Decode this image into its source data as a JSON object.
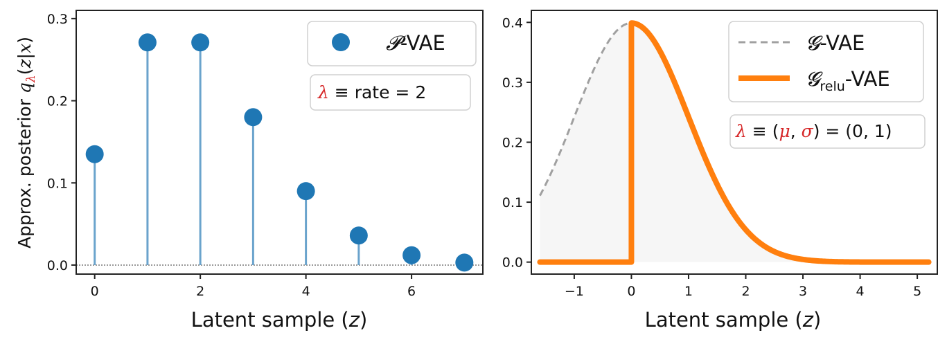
{
  "chart_data": [
    {
      "type": "stem",
      "xlabel": "Latent sample (z)",
      "ylabel": "Approx. posterior  qλ(z|x)",
      "xlim": [
        -0.35,
        7.35
      ],
      "ylim": [
        -0.011,
        0.31
      ],
      "xticks": [
        0,
        2,
        4,
        6
      ],
      "xtick_labels": [
        "0",
        "2",
        "4",
        "6"
      ],
      "yticks": [
        0.0,
        0.1,
        0.2,
        0.3
      ],
      "ytick_labels": [
        "0.0",
        "0.1",
        "0.2",
        "0.3"
      ],
      "x": [
        0,
        1,
        2,
        3,
        4,
        5,
        6,
        7
      ],
      "y": [
        0.135,
        0.271,
        0.271,
        0.18,
        0.09,
        0.036,
        0.012,
        0.003
      ],
      "baseline": 0.0,
      "legend": {
        "label": "P-VAE",
        "script_symbol": "𝓟",
        "suffix": "-VAE",
        "placement": "top-right"
      },
      "param_box": {
        "symbol": "λ",
        "text": " ≡ rate = 2"
      },
      "colors": {
        "marker": "#1f77b4",
        "stem": "#6aa3cc",
        "baseline": "#777777"
      }
    },
    {
      "type": "line",
      "xlabel": "Latent sample (z)",
      "xlim": [
        -1.75,
        5.35
      ],
      "ylim": [
        -0.02,
        0.42
      ],
      "xticks": [
        -1,
        0,
        1,
        2,
        3,
        4,
        5
      ],
      "xtick_labels": [
        "−1",
        "0",
        "1",
        "2",
        "3",
        "4",
        "5"
      ],
      "yticks": [
        0.0,
        0.1,
        0.2,
        0.3,
        0.4
      ],
      "ytick_labels": [
        "0.0",
        "0.1",
        "0.2",
        "0.3",
        "0.4"
      ],
      "x_range": [
        -1.6,
        5.2
      ],
      "series": [
        {
          "name": "G-VAE",
          "script_symbol": "𝓖",
          "suffix": "-VAE",
          "function": "normal_pdf",
          "mu": 0,
          "sigma": 1,
          "x_max": 0,
          "style": "dashed",
          "color": "#a0a0a0"
        },
        {
          "name": "Grelu-VAE",
          "script_symbol": "𝓖",
          "subscript": "relu",
          "suffix": "-VAE",
          "function": "relu_normal_pdf",
          "mu": 0,
          "sigma": 1,
          "style": "solid",
          "color": "#ff7f0e"
        }
      ],
      "legend_placement": "top-right",
      "param_box": {
        "symbol": "λ",
        "open": " ≡ (",
        "mu": "μ",
        "sep": ", ",
        "sigma": "σ",
        "close": ") = (0, 1)"
      },
      "fill_color": "#ececec"
    }
  ]
}
